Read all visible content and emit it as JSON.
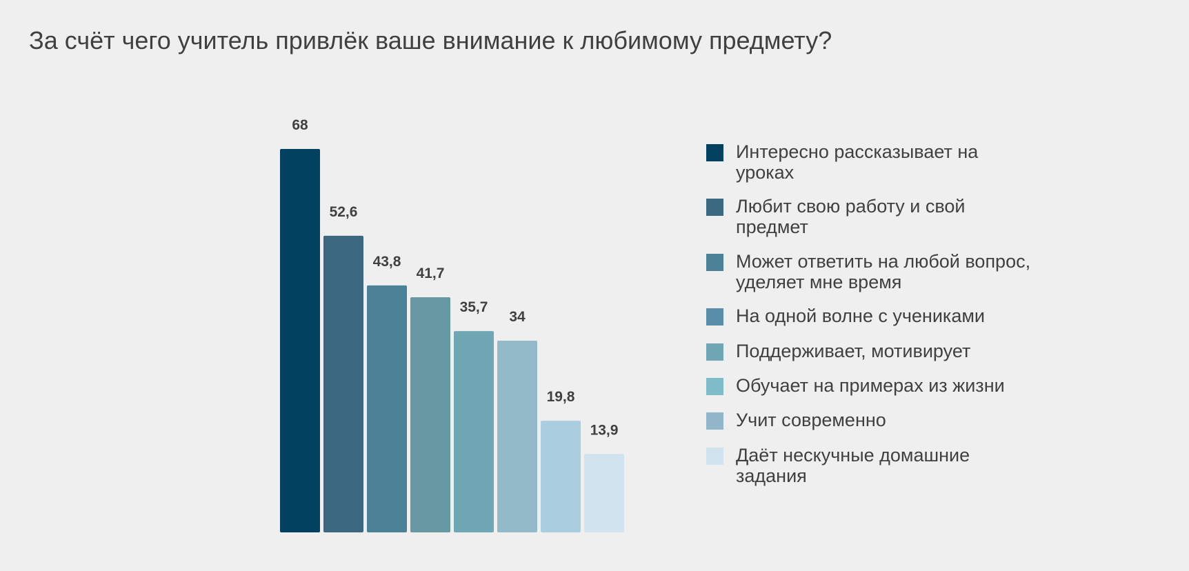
{
  "title": "За счёт чего учитель привлёк ваше внимание к любимому предмету?",
  "chart_data": {
    "type": "bar",
    "title": "За счёт чего учитель привлёк ваше внимание к любимому предмету?",
    "xlabel": "",
    "ylabel": "",
    "ylim": [
      0,
      68
    ],
    "grid": false,
    "legend": "right",
    "categories": [
      "Интересно рассказывает на уроках",
      "Любит свою работу и свой предмет",
      "Может ответить на любой вопрос, уделяет мне время",
      "На одной волне с учениками",
      "Поддерживает, мотивирует",
      "Обучает на примерах из жизни",
      "Учит современно",
      "Даёт нескучные домашние задания"
    ],
    "values": [
      68,
      52.6,
      43.8,
      41.7,
      35.7,
      34,
      19.8,
      13.9
    ],
    "value_labels": [
      "68",
      "52,6",
      "43,8",
      "41,7",
      "35,7",
      "34",
      "19,8",
      "13,9"
    ],
    "bar_colors": [
      "#024260",
      "#3b687f",
      "#4b8196",
      "#6898a2",
      "#6fa7b5",
      "#92bac8",
      "#abcde0",
      "#d0e3ef"
    ],
    "legend_entries": [
      {
        "label": "Интересно рассказывает на уроках",
        "color": "#024260"
      },
      {
        "label": "Любит свою работу и свой предмет",
        "color": "#3b687f"
      },
      {
        "label": "Может ответить на любой вопрос, уделяет мне время",
        "color": "#4b8196"
      },
      {
        "label": "На одной волне с учениками",
        "color": "#5a8fac"
      },
      {
        "label": "Поддерживает, мотивирует",
        "color": "#6fa7b5"
      },
      {
        "label": "Обучает на примерах из жизни",
        "color": "#7fbcca"
      },
      {
        "label": "Учит современно",
        "color": "#92b6ca"
      },
      {
        "label": "Даёт нескучные домашние задания",
        "color": "#d0e3ef"
      }
    ]
  }
}
